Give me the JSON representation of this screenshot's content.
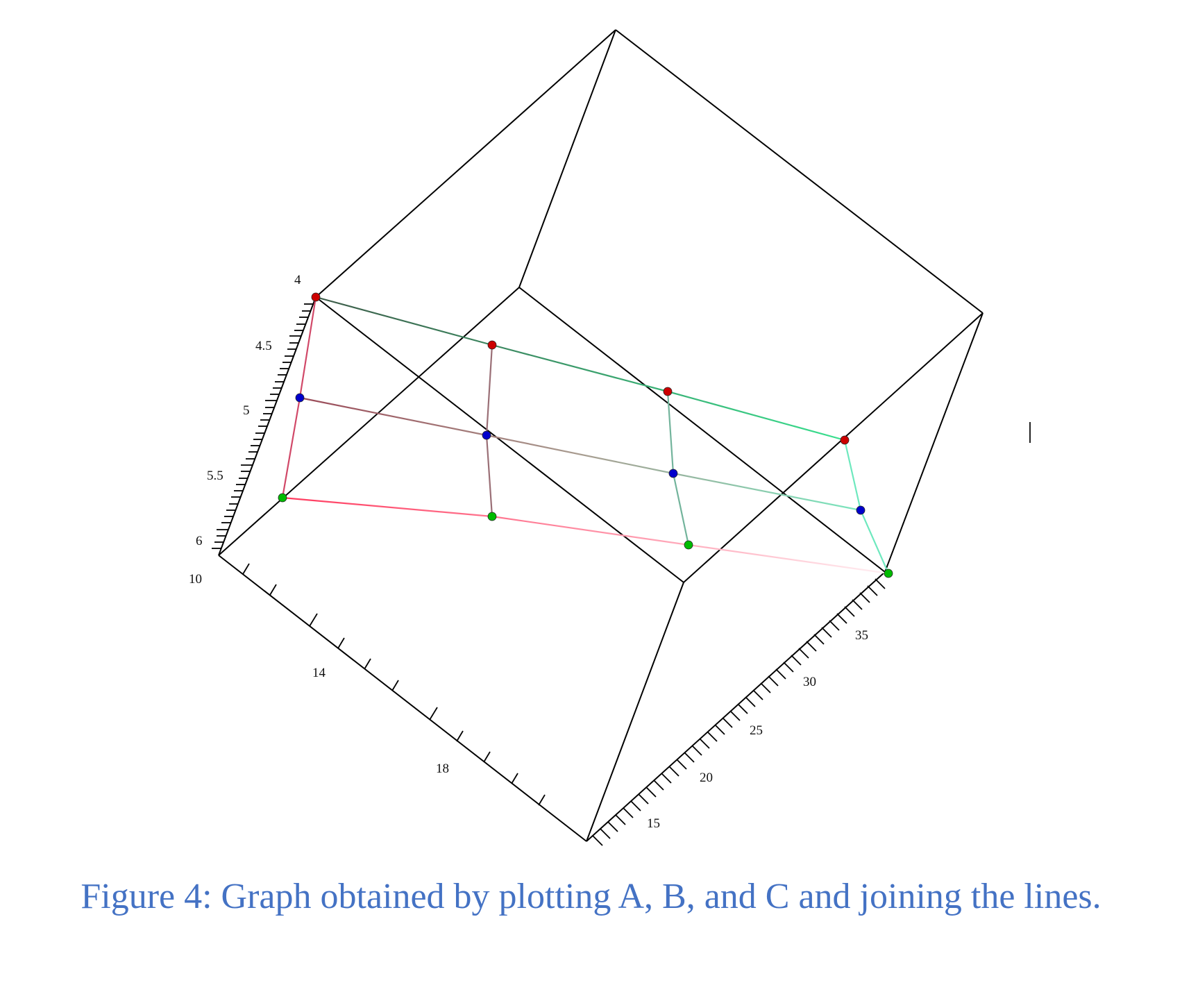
{
  "caption": "Figure 4: Graph obtained by plotting A, B, and C and joining the lines.",
  "chart_data": {
    "type": "scatter3d",
    "axes": {
      "z": {
        "ticks": [
          "4",
          "4.5",
          "5",
          "5.5",
          "6"
        ],
        "range": [
          4,
          6
        ]
      },
      "x": {
        "ticks": [
          "10",
          "14",
          "18"
        ]
      },
      "y": {
        "ticks": [
          "15",
          "20",
          "25",
          "30",
          "35"
        ]
      }
    },
    "series": [
      {
        "color": "#cc0000",
        "point_count": 4
      },
      {
        "color": "#0000cc",
        "point_count": 4
      },
      {
        "color": "#00bb00",
        "point_count": 4
      }
    ],
    "box": true,
    "grid": false
  }
}
